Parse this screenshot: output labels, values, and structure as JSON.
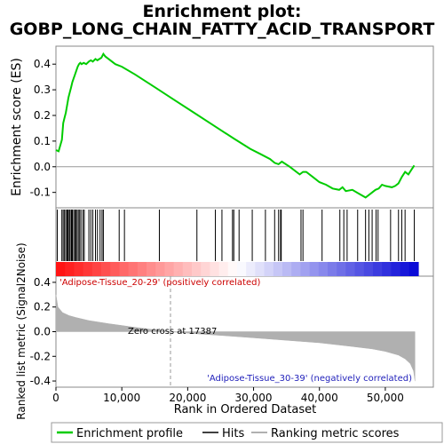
{
  "chart_data": {
    "type": "line",
    "title": "Enrichment plot:\nGOBP_LONG_CHAIN_FATTY_ACID_TRANSPORT",
    "title_lines": [
      "Enrichment plot:",
      "GOBP_LONG_CHAIN_FATTY_ACID_TRANSPORT"
    ],
    "x_range": [
      0,
      55000
    ],
    "x_ticks": [
      0,
      10000,
      20000,
      30000,
      40000,
      50000
    ],
    "x_tick_labels": [
      "0",
      "10,000",
      "20,000",
      "30,000",
      "40,000",
      "50,000"
    ],
    "xlabel": "Rank in Ordered Dataset",
    "panels": {
      "enrichment": {
        "ylabel": "Enrichment score (ES)",
        "ylim": [
          -0.16,
          0.47
        ],
        "y_ticks": [
          -0.1,
          0.0,
          0.1,
          0.2,
          0.3,
          0.4
        ],
        "y_tick_labels": [
          "-0.1",
          "0.0",
          "0.1",
          "0.2",
          "0.3",
          "0.4"
        ],
        "zero_line": true,
        "color": "#00cc00",
        "es_profile": {
          "x": [
            0,
            400,
            900,
            1100,
            1300,
            1500,
            1700,
            1900,
            2100,
            2300,
            2500,
            2700,
            2900,
            3100,
            3300,
            3500,
            3700,
            3900,
            4200,
            4600,
            5000,
            5300,
            5600,
            6000,
            6300,
            6600,
            6900,
            7200,
            7500,
            8000,
            9000,
            10000,
            12000,
            15000,
            18000,
            21000,
            24000,
            27000,
            29500,
            31000,
            32500,
            33200,
            33800,
            34300,
            35500,
            37000,
            37500,
            38000,
            39000,
            40000,
            41000,
            42000,
            43000,
            43500,
            44000,
            45000,
            46000,
            47000,
            47500,
            48000,
            48500,
            49000,
            49500,
            50000,
            51000,
            51500,
            52000,
            52500,
            53000,
            53500,
            54000,
            54400
          ],
          "y": [
            0.065,
            0.06,
            0.105,
            0.17,
            0.19,
            0.21,
            0.24,
            0.27,
            0.29,
            0.31,
            0.33,
            0.345,
            0.36,
            0.375,
            0.39,
            0.4,
            0.405,
            0.4,
            0.405,
            0.4,
            0.41,
            0.415,
            0.41,
            0.42,
            0.415,
            0.42,
            0.425,
            0.44,
            0.43,
            0.42,
            0.4,
            0.39,
            0.36,
            0.31,
            0.26,
            0.21,
            0.16,
            0.11,
            0.07,
            0.05,
            0.03,
            0.015,
            0.01,
            0.02,
            0.0,
            -0.03,
            -0.02,
            -0.02,
            -0.04,
            -0.06,
            -0.07,
            -0.085,
            -0.09,
            -0.08,
            -0.095,
            -0.09,
            -0.105,
            -0.12,
            -0.11,
            -0.1,
            -0.09,
            -0.085,
            -0.07,
            -0.075,
            -0.08,
            -0.075,
            -0.065,
            -0.04,
            -0.02,
            -0.03,
            -0.01,
            0.005
          ]
        }
      },
      "hits": {
        "positions": [
          200,
          900,
          1100,
          1300,
          1500,
          1700,
          1800,
          1900,
          2100,
          2300,
          2400,
          2500,
          2700,
          2900,
          3000,
          3200,
          3400,
          3600,
          3800,
          4100,
          4300,
          5000,
          5300,
          5600,
          6000,
          6300,
          6700,
          7000,
          7200,
          9600,
          10400,
          15700,
          21400,
          24200,
          25200,
          26800,
          27000,
          27800,
          29800,
          31800,
          33200,
          33800,
          34100,
          34200,
          37200,
          37500,
          40400,
          43100,
          43700,
          44200,
          45800,
          47000,
          47500,
          48000,
          48600,
          48900,
          50800,
          52000,
          52500,
          53000,
          54400
        ]
      },
      "rank_metric": {
        "ylabel": "Ranked list metric (Signal2Noise)",
        "ylim": [
          -0.45,
          0.45
        ],
        "y_ticks": [
          -0.4,
          -0.2,
          0.0,
          0.2,
          0.4
        ],
        "y_tick_labels": [
          "-0.4",
          "-0.2",
          "0.0",
          "0.2",
          "0.4"
        ],
        "positive_label": "'Adipose-Tissue_20-29' (positively correlated)",
        "negative_label": "'Adipose-Tissue_30-39' (negatively correlated)",
        "zero_cross_label": "Zero cross at 17387",
        "zero_cross": 17387,
        "fill_color": "#b0b0b0",
        "curve": {
          "x": [
            0,
            300,
            1000,
            2000,
            3000,
            5000,
            8000,
            12000,
            15000,
            17387,
            20000,
            25000,
            30000,
            35000,
            40000,
            45000,
            48000,
            50000,
            52000,
            53000,
            53800,
            54300,
            54500
          ],
          "y": [
            0.3,
            0.2,
            0.155,
            0.13,
            0.115,
            0.09,
            0.065,
            0.035,
            0.015,
            0.0,
            -0.012,
            -0.03,
            -0.05,
            -0.07,
            -0.09,
            -0.12,
            -0.14,
            -0.16,
            -0.19,
            -0.22,
            -0.26,
            -0.32,
            -0.4
          ]
        }
      }
    },
    "legend": {
      "placement": "bottom",
      "entries": [
        {
          "label": "Enrichment profile",
          "color": "#00cc00",
          "style": "line"
        },
        {
          "label": "Hits",
          "color": "#000000",
          "style": "line"
        },
        {
          "label": "Ranking metric scores",
          "color": "#b0b0b0",
          "style": "line"
        }
      ]
    }
  }
}
